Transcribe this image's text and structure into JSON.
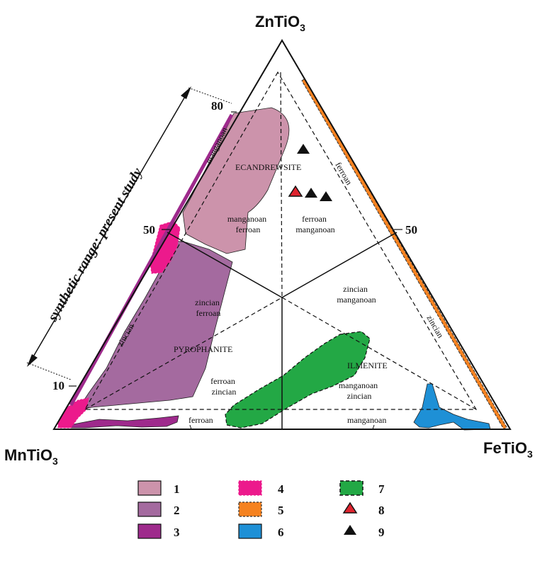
{
  "vertices": {
    "top": {
      "formula": "ZnTiO",
      "sub": "3"
    },
    "left": {
      "formula": "MnTiO",
      "sub": "3"
    },
    "right": {
      "formula": "FeTiO",
      "sub": "3"
    }
  },
  "ticks": {
    "left_80": "80",
    "left_50": "50",
    "left_10": "10",
    "right_50": "50"
  },
  "synthetic_label": "synthetic range: present study",
  "minerals": {
    "ecandrewsite": "ECANDREWSITE",
    "pyrophanite": "PYROPHANITE",
    "ilmenite": "ILMENITE"
  },
  "fields": {
    "manganoan_edge": "manganoan",
    "ferroan_edge": "ferroan",
    "zincian_left": "zincian",
    "zincian_right": "zincian",
    "ferroan_bottom": "ferroan",
    "manganoan_bottom": "manganoan",
    "mf_1": "manganoan",
    "mf_2": "ferroan",
    "fm_1": "ferroan",
    "fm_2": "manganoan",
    "zf_1": "zincian",
    "zf_2": "ferroan",
    "zm_1": "zincian",
    "zm_2": "manganoan",
    "fz_1": "ferroan",
    "fz_2": "zincian",
    "mz_1": "manganoan",
    "mz_2": "zincian"
  },
  "legend": [
    {
      "id": "1",
      "color": "#cc93ab"
    },
    {
      "id": "2",
      "color": "#a46a9f"
    },
    {
      "id": "3",
      "color": "#9e2a8c"
    },
    {
      "id": "4",
      "color": "#ec1a8c"
    },
    {
      "id": "5",
      "color": "#f58220"
    },
    {
      "id": "6",
      "color": "#1e90d6"
    },
    {
      "id": "7",
      "color": "#23a845"
    },
    {
      "id": "8",
      "color": "#e0242f"
    },
    {
      "id": "9",
      "color": "#111111"
    }
  ]
}
